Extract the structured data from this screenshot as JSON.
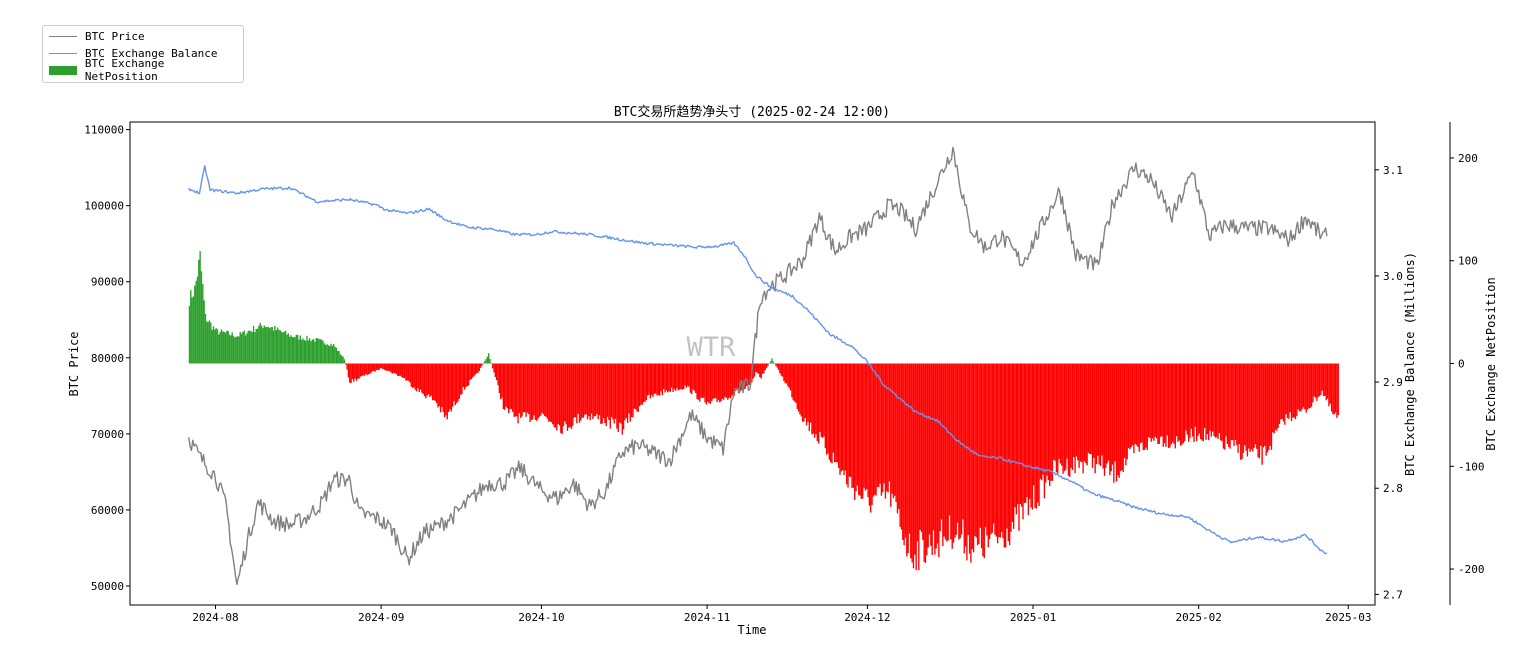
{
  "chart_data": {
    "type": "line",
    "title": "BTC交易所趋势净头寸 (2025-02-24 12:00)",
    "watermark": "WTR",
    "xlabel": "Time",
    "x_ticks": [
      "2024-08",
      "2024-09",
      "2024-10",
      "2024-11",
      "2024-12",
      "2025-01",
      "2025-02",
      "2025-03"
    ],
    "x_range": [
      "2024-07-16",
      "2025-03-06"
    ],
    "y_left": {
      "label": "BTC Price",
      "range": [
        47500,
        111000
      ],
      "ticks": [
        50000,
        60000,
        70000,
        80000,
        90000,
        100000,
        110000
      ]
    },
    "y_right1": {
      "label": "BTC Exchange Balance (Millions)",
      "range": [
        2.69,
        3.145
      ],
      "ticks": [
        2.7,
        2.8,
        2.9,
        3.0,
        3.1
      ],
      "tick_labels": [
        "2.7",
        "2.8",
        "2.9",
        "3.0",
        "3.1"
      ]
    },
    "y_right2": {
      "label": "BTC Exchange NetPosition",
      "range": [
        -235,
        235
      ],
      "ticks": [
        -200,
        -100,
        0,
        100,
        200
      ]
    },
    "legend": {
      "position": "top-left",
      "entries": [
        "BTC Price",
        "BTC Exchange Balance",
        "BTC Exchange NetPosition"
      ]
    },
    "colors": {
      "price": "#808080",
      "balance": "#6495ed",
      "positive": "#2ca02c",
      "negative": "#ff0000"
    },
    "series": [
      {
        "name": "BTC Price",
        "axis": "left",
        "color": "#808080",
        "points": [
          [
            "2024-07-27",
            69500
          ],
          [
            "2024-07-29",
            67000
          ],
          [
            "2024-08-01",
            64500
          ],
          [
            "2024-08-03",
            60500
          ],
          [
            "2024-08-05",
            50000
          ],
          [
            "2024-08-07",
            56000
          ],
          [
            "2024-08-09",
            61000
          ],
          [
            "2024-08-12",
            58500
          ],
          [
            "2024-08-15",
            58000
          ],
          [
            "2024-08-18",
            59000
          ],
          [
            "2024-08-21",
            61000
          ],
          [
            "2024-08-23",
            64000
          ],
          [
            "2024-08-26",
            64000
          ],
          [
            "2024-08-28",
            59500
          ],
          [
            "2024-08-31",
            59000
          ],
          [
            "2024-09-03",
            57500
          ],
          [
            "2024-09-06",
            53500
          ],
          [
            "2024-09-09",
            57000
          ],
          [
            "2024-09-12",
            58000
          ],
          [
            "2024-09-15",
            59500
          ],
          [
            "2024-09-18",
            61500
          ],
          [
            "2024-09-21",
            63500
          ],
          [
            "2024-09-24",
            63500
          ],
          [
            "2024-09-27",
            65500
          ],
          [
            "2024-10-01",
            62500
          ],
          [
            "2024-10-04",
            61500
          ],
          [
            "2024-10-07",
            63500
          ],
          [
            "2024-10-10",
            60500
          ],
          [
            "2024-10-13",
            62500
          ],
          [
            "2024-10-16",
            67500
          ],
          [
            "2024-10-19",
            68500
          ],
          [
            "2024-10-22",
            67500
          ],
          [
            "2024-10-25",
            66500
          ],
          [
            "2024-10-29",
            72500
          ],
          [
            "2024-11-01",
            69500
          ],
          [
            "2024-11-04",
            68000
          ],
          [
            "2024-11-06",
            75500
          ],
          [
            "2024-11-09",
            76500
          ],
          [
            "2024-11-11",
            88000
          ],
          [
            "2024-11-13",
            89500
          ],
          [
            "2024-11-16",
            91000
          ],
          [
            "2024-11-19",
            93000
          ],
          [
            "2024-11-22",
            98500
          ],
          [
            "2024-11-25",
            94000
          ],
          [
            "2024-11-28",
            96000
          ],
          [
            "2024-12-01",
            97000
          ],
          [
            "2024-12-05",
            100000
          ],
          [
            "2024-12-07",
            99500
          ],
          [
            "2024-12-10",
            97000
          ],
          [
            "2024-12-13",
            101500
          ],
          [
            "2024-12-16",
            106000
          ],
          [
            "2024-12-17",
            107500
          ],
          [
            "2024-12-20",
            97500
          ],
          [
            "2024-12-23",
            94500
          ],
          [
            "2024-12-26",
            96000
          ],
          [
            "2024-12-30",
            92500
          ],
          [
            "2025-01-02",
            96500
          ],
          [
            "2025-01-06",
            102000
          ],
          [
            "2025-01-09",
            93500
          ],
          [
            "2025-01-13",
            92000
          ],
          [
            "2025-01-16",
            100500
          ],
          [
            "2025-01-20",
            105000
          ],
          [
            "2025-01-23",
            103500
          ],
          [
            "2025-01-27",
            98500
          ],
          [
            "2025-01-31",
            104500
          ],
          [
            "2025-02-03",
            96000
          ],
          [
            "2025-02-06",
            97500
          ],
          [
            "2025-02-10",
            97000
          ],
          [
            "2025-02-14",
            97000
          ],
          [
            "2025-02-18",
            95500
          ],
          [
            "2025-02-21",
            98500
          ],
          [
            "2025-02-24",
            96000
          ],
          [
            "2025-02-25",
            96000
          ]
        ]
      },
      {
        "name": "BTC Exchange Balance",
        "axis": "right1",
        "color": "#6495ed",
        "points": [
          [
            "2024-07-27",
            3.082
          ],
          [
            "2024-07-29",
            3.078
          ],
          [
            "2024-07-30",
            3.103
          ],
          [
            "2024-07-31",
            3.081
          ],
          [
            "2024-08-05",
            3.078
          ],
          [
            "2024-08-10",
            3.082
          ],
          [
            "2024-08-15",
            3.083
          ],
          [
            "2024-08-20",
            3.07
          ],
          [
            "2024-08-26",
            3.072
          ],
          [
            "2024-08-31",
            3.067
          ],
          [
            "2024-09-02",
            3.062
          ],
          [
            "2024-09-06",
            3.059
          ],
          [
            "2024-09-10",
            3.063
          ],
          [
            "2024-09-13",
            3.053
          ],
          [
            "2024-09-17",
            3.046
          ],
          [
            "2024-09-22",
            3.044
          ],
          [
            "2024-09-26",
            3.039
          ],
          [
            "2024-09-30",
            3.039
          ],
          [
            "2024-10-03",
            3.042
          ],
          [
            "2024-10-10",
            3.039
          ],
          [
            "2024-10-15",
            3.035
          ],
          [
            "2024-10-20",
            3.031
          ],
          [
            "2024-10-25",
            3.029
          ],
          [
            "2024-10-30",
            3.027
          ],
          [
            "2024-11-03",
            3.028
          ],
          [
            "2024-11-06",
            3.031
          ],
          [
            "2024-11-08",
            3.019
          ],
          [
            "2024-11-10",
            3.001
          ],
          [
            "2024-11-13",
            2.989
          ],
          [
            "2024-11-17",
            2.981
          ],
          [
            "2024-11-20",
            2.967
          ],
          [
            "2024-11-24",
            2.945
          ],
          [
            "2024-11-28",
            2.934
          ],
          [
            "2024-12-01",
            2.919
          ],
          [
            "2024-12-04",
            2.898
          ],
          [
            "2024-12-07",
            2.885
          ],
          [
            "2024-12-10",
            2.872
          ],
          [
            "2024-12-14",
            2.864
          ],
          [
            "2024-12-18",
            2.844
          ],
          [
            "2024-12-22",
            2.83
          ],
          [
            "2024-12-26",
            2.828
          ],
          [
            "2024-12-30",
            2.822
          ],
          [
            "2025-01-04",
            2.816
          ],
          [
            "2025-01-08",
            2.807
          ],
          [
            "2025-01-12",
            2.795
          ],
          [
            "2025-01-16",
            2.789
          ],
          [
            "2025-01-20",
            2.782
          ],
          [
            "2025-01-25",
            2.776
          ],
          [
            "2025-01-30",
            2.773
          ],
          [
            "2025-02-03",
            2.76
          ],
          [
            "2025-02-07",
            2.749
          ],
          [
            "2025-02-12",
            2.754
          ],
          [
            "2025-02-17",
            2.75
          ],
          [
            "2025-02-21",
            2.756
          ],
          [
            "2025-02-24",
            2.741
          ],
          [
            "2025-02-25",
            2.739
          ]
        ]
      },
      {
        "name": "BTC Exchange NetPosition",
        "axis": "right2",
        "type": "bar",
        "envelope": [
          [
            "2024-07-27",
            70
          ],
          [
            "2024-07-28",
            80
          ],
          [
            "2024-07-29",
            115
          ],
          [
            "2024-07-30",
            50
          ],
          [
            "2024-08-01",
            35
          ],
          [
            "2024-08-05",
            30
          ],
          [
            "2024-08-10",
            42
          ],
          [
            "2024-08-15",
            30
          ],
          [
            "2024-08-20",
            25
          ],
          [
            "2024-08-23",
            20
          ],
          [
            "2024-08-25",
            5
          ],
          [
            "2024-08-26",
            -20
          ],
          [
            "2024-08-28",
            -15
          ],
          [
            "2024-09-01",
            -5
          ],
          [
            "2024-09-05",
            -15
          ],
          [
            "2024-09-08",
            -30
          ],
          [
            "2024-09-11",
            -40
          ],
          [
            "2024-09-13",
            -60
          ],
          [
            "2024-09-16",
            -30
          ],
          [
            "2024-09-19",
            -10
          ],
          [
            "2024-09-21",
            10
          ],
          [
            "2024-09-22",
            -10
          ],
          [
            "2024-09-24",
            -50
          ],
          [
            "2024-09-27",
            -60
          ],
          [
            "2024-10-01",
            -55
          ],
          [
            "2024-10-05",
            -70
          ],
          [
            "2024-10-09",
            -55
          ],
          [
            "2024-10-12",
            -60
          ],
          [
            "2024-10-16",
            -70
          ],
          [
            "2024-10-20",
            -40
          ],
          [
            "2024-10-24",
            -30
          ],
          [
            "2024-10-28",
            -25
          ],
          [
            "2024-11-01",
            -45
          ],
          [
            "2024-11-05",
            -35
          ],
          [
            "2024-11-09",
            -25
          ],
          [
            "2024-11-10",
            -10
          ],
          [
            "2024-11-11",
            -15
          ],
          [
            "2024-11-12",
            -5
          ],
          [
            "2024-11-13",
            5
          ],
          [
            "2024-11-14",
            -5
          ],
          [
            "2024-11-16",
            -25
          ],
          [
            "2024-11-19",
            -60
          ],
          [
            "2024-11-23",
            -90
          ],
          [
            "2024-11-27",
            -125
          ],
          [
            "2024-12-01",
            -150
          ],
          [
            "2024-12-05",
            -140
          ],
          [
            "2024-12-09",
            -205
          ],
          [
            "2024-12-13",
            -195
          ],
          [
            "2024-12-17",
            -180
          ],
          [
            "2024-12-21",
            -200
          ],
          [
            "2024-12-25",
            -190
          ],
          [
            "2024-12-29",
            -170
          ],
          [
            "2025-01-02",
            -140
          ],
          [
            "2025-01-05",
            -115
          ],
          [
            "2025-01-08",
            -110
          ],
          [
            "2025-01-12",
            -105
          ],
          [
            "2025-01-16",
            -120
          ],
          [
            "2025-01-20",
            -95
          ],
          [
            "2025-01-24",
            -80
          ],
          [
            "2025-01-28",
            -85
          ],
          [
            "2025-02-01",
            -75
          ],
          [
            "2025-02-05",
            -85
          ],
          [
            "2025-02-09",
            -95
          ],
          [
            "2025-02-13",
            -100
          ],
          [
            "2025-02-17",
            -60
          ],
          [
            "2025-02-21",
            -50
          ],
          [
            "2025-02-24",
            -30
          ],
          [
            "2025-02-26",
            -55
          ],
          [
            "2025-02-27",
            -60
          ]
        ]
      }
    ]
  }
}
